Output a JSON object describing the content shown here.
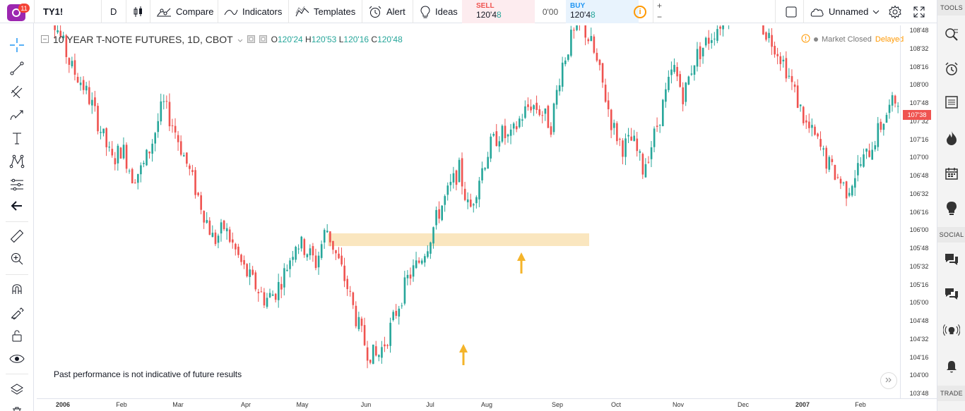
{
  "header": {
    "notification_count": "11",
    "symbol": "TY1!",
    "interval": "D",
    "compare_label": "Compare",
    "indicators_label": "Indicators",
    "templates_label": "Templates",
    "alert_label": "Alert",
    "ideas_label": "Ideas",
    "sell_label": "SELL",
    "sell_price_main": "120'4",
    "sell_price_tail": "8",
    "spread": "0'00",
    "buy_label": "BUY",
    "buy_price_main": "120'4",
    "buy_price_tail": "8",
    "plus": "+",
    "minus": "−",
    "layout_name": "Unnamed"
  },
  "legend": {
    "title": "10 YEAR T-NOTE FUTURES, 1D, CBOT",
    "o_label": "O",
    "o_value": "120'24",
    "h_label": "H",
    "h_value": "120'53",
    "l_label": "L",
    "l_value": "120'16",
    "c_label": "C",
    "c_value": "120'48"
  },
  "status": {
    "market": "Market Closed",
    "delayed": "Delayed"
  },
  "disclaimer": "Past performance is not indicative of future results",
  "right_panel": {
    "tools_label": "TOOLS",
    "social_label": "SOCIAL",
    "trade_label": "TRADE"
  },
  "colors": {
    "up": "#26a69a",
    "down": "#ef5350",
    "zone": "#f8ddaa",
    "arrow": "#f4b42a",
    "last_price": "#ef5350"
  },
  "icons": {
    "left": [
      "crosshair-icon",
      "trend-line-icon",
      "fib-icon",
      "brush-icon",
      "text-icon",
      "pattern-icon",
      "prediction-icon",
      "back-arrow-icon",
      "ruler-icon",
      "zoom-icon",
      "magnet-icon",
      "lock-drawing-icon",
      "unlock-icon",
      "eye-icon",
      "layers-icon"
    ],
    "right": [
      "watchlist-icon",
      "alerts-icon",
      "data-window-icon",
      "hotlist-icon",
      "calendar-icon",
      "ideas-stream-icon",
      "chats-icon",
      "private-chat-icon",
      "streams-icon",
      "notifications-icon"
    ]
  },
  "chart_data": {
    "type": "candlestick",
    "price_unit": "32nds",
    "y_axis_labels": [
      "108'48",
      "108'32",
      "108'16",
      "108'00",
      "107'48",
      "107'32",
      "107'16",
      "107'00",
      "106'48",
      "106'32",
      "106'16",
      "106'00",
      "105'48",
      "105'32",
      "105'16",
      "105'00",
      "104'48",
      "104'32",
      "104'16",
      "104'00",
      "103'48"
    ],
    "last_price_label": "107'38",
    "x_axis_labels": [
      {
        "text": "2006",
        "bold": true
      },
      {
        "text": "Feb",
        "bold": false
      },
      {
        "text": "Mar",
        "bold": false
      },
      {
        "text": "Apr",
        "bold": false
      },
      {
        "text": "May",
        "bold": false
      },
      {
        "text": "Jun",
        "bold": false
      },
      {
        "text": "Jul",
        "bold": false
      },
      {
        "text": "Aug",
        "bold": false
      },
      {
        "text": "Sep",
        "bold": false
      },
      {
        "text": "Oct",
        "bold": false
      },
      {
        "text": "Nov",
        "bold": false
      },
      {
        "text": "Dec",
        "bold": false
      },
      {
        "text": "2007",
        "bold": true
      },
      {
        "text": "Feb",
        "bold": false
      }
    ],
    "closes_trend": [
      109.2,
      108.8,
      108.4,
      108.0,
      107.8,
      107.5,
      107.1,
      106.7,
      106.9,
      106.5,
      106.6,
      107.0,
      107.5,
      107.2,
      106.8,
      106.4,
      106.0,
      105.6,
      105.8,
      105.5,
      105.2,
      105.0,
      104.8,
      104.9,
      105.2,
      105.6,
      105.5,
      105.3,
      105.8,
      105.4,
      105.0,
      104.5,
      104.1,
      104.0,
      104.3,
      104.7,
      105.1,
      105.3,
      105.6,
      106.0,
      106.3,
      106.6,
      106.0,
      106.5,
      106.9,
      107.1,
      107.0,
      107.3,
      107.5,
      107.4,
      107.2,
      108.0,
      108.4,
      108.6,
      108.3,
      107.8,
      107.2,
      106.9,
      107.0,
      106.6,
      107.0,
      107.5,
      108.0,
      107.6,
      108.1,
      108.3,
      108.5,
      108.7,
      108.9,
      109.0,
      108.8,
      108.5,
      108.3,
      108.0,
      107.6,
      107.2,
      107.0,
      106.7,
      106.5,
      106.3,
      106.6,
      106.8,
      107.1,
      107.4,
      107.6
    ],
    "support_zone": {
      "low": "105'48",
      "high": "106'00"
    },
    "annotations": [
      "up-arrow",
      "up-arrow"
    ]
  }
}
